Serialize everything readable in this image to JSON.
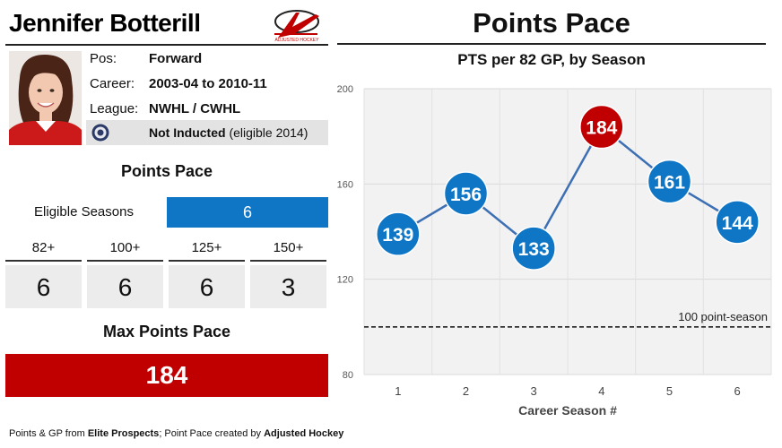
{
  "player": {
    "name": "Jennifer Botterill",
    "pos_label": "Pos:",
    "pos_value": "Forward",
    "career_label": "Career:",
    "career_value": "2003-04 to 2010-11",
    "league_label": "League:",
    "league_value": "NWHL / CWHL",
    "inducted_status": "Not Inducted",
    "inducted_note": "(eligible 2014)"
  },
  "logo": {
    "text": "ADJUSTED HOCKEY",
    "icon": "adjusted-hockey-logo"
  },
  "summary": {
    "section_title": "Points Pace",
    "eligible_label": "Eligible Seasons",
    "eligible_value": "6",
    "thresholds": [
      {
        "label": "82+",
        "value": "6"
      },
      {
        "label": "100+",
        "value": "6"
      },
      {
        "label": "125+",
        "value": "6"
      },
      {
        "label": "150+",
        "value": "3"
      }
    ],
    "max_title": "Max Points Pace",
    "max_value": "184"
  },
  "footer": {
    "text1": "Points & GP from ",
    "source1": "Elite Prospects",
    "text2": "; Point Pace created by ",
    "source2": "Adjusted Hockey"
  },
  "colors": {
    "blue": "#0f76c6",
    "red": "#c00000",
    "line": "#3c6fb4",
    "plot_bg": "#f2f2f2",
    "grid": "#d9d9d9"
  },
  "chart_data": {
    "type": "line",
    "title": "Points Pace",
    "subtitle": "PTS per 82 GP, by Season",
    "xlabel": "Career Season #",
    "ylabel": "",
    "x": [
      1,
      2,
      3,
      4,
      5,
      6
    ],
    "values": [
      139,
      156,
      133,
      184,
      161,
      144
    ],
    "ylim": [
      80,
      200
    ],
    "yticks": [
      80,
      120,
      160,
      200
    ],
    "highlight_max": true,
    "grid": true,
    "reference_line": {
      "value": 100,
      "label": "100 point-season"
    }
  }
}
